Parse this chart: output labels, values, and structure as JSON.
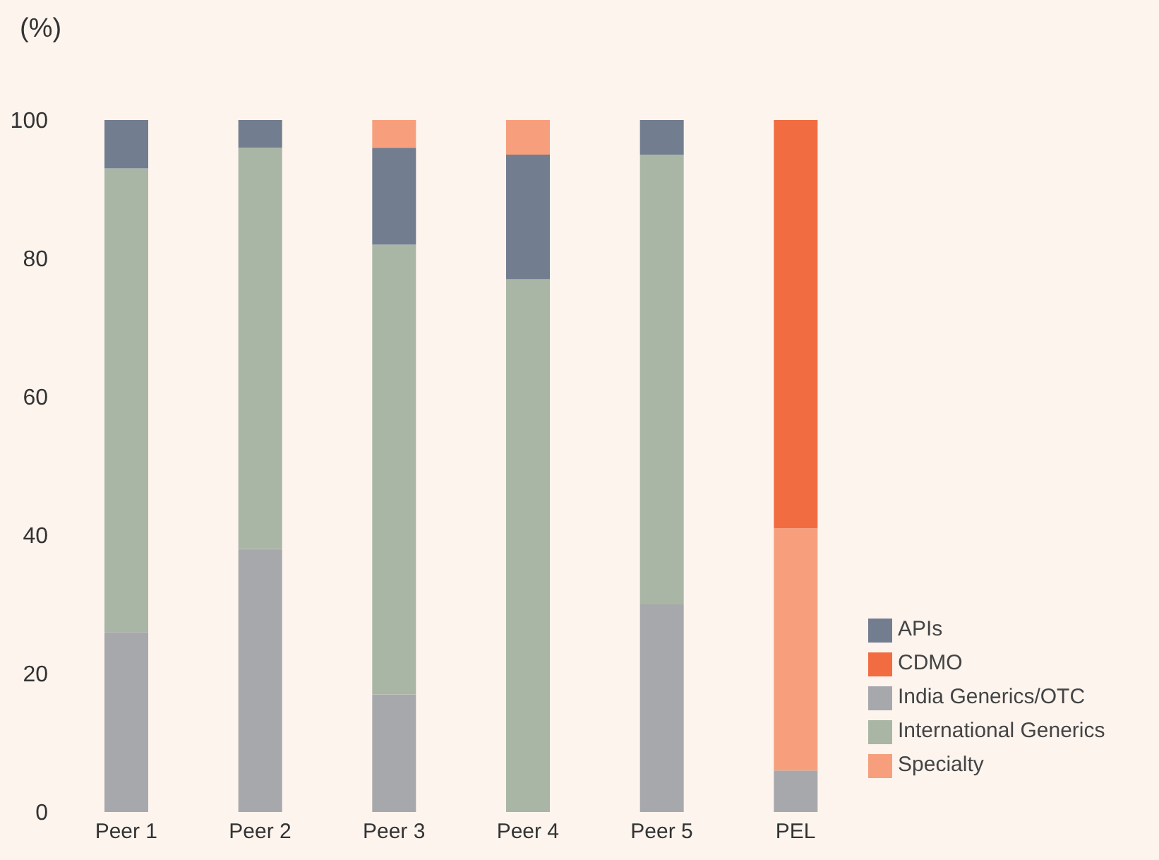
{
  "chart_data": {
    "type": "bar",
    "stacked": true,
    "ylabel": "(%)",
    "categories": [
      "Peer 1",
      "Peer 2",
      "Peer 3",
      "Peer 4",
      "Peer 5",
      "PEL"
    ],
    "series": [
      {
        "name": "India Generics/OTC",
        "color": "#a7a8ac",
        "values": [
          26,
          38,
          17,
          0,
          30,
          6
        ]
      },
      {
        "name": "International Generics",
        "color": "#a9b6a5",
        "values": [
          67,
          58,
          65,
          77,
          65,
          0
        ]
      },
      {
        "name": "APIs",
        "color": "#727d8f",
        "values": [
          7,
          4,
          14,
          18,
          5,
          0
        ]
      },
      {
        "name": "Specialty",
        "color": "#f79f7c",
        "values": [
          0,
          0,
          4,
          5,
          0,
          35
        ]
      },
      {
        "name": "CDMO",
        "color": "#f26c42",
        "values": [
          0,
          0,
          0,
          0,
          0,
          59
        ]
      }
    ],
    "ylim": [
      0,
      100
    ],
    "yticks": [
      0,
      20,
      40,
      60,
      80,
      100
    ],
    "grid": false,
    "legend": "bottom right"
  }
}
